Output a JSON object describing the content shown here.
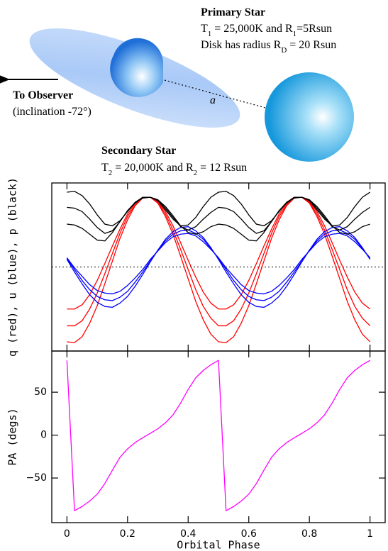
{
  "diagram": {
    "primary": {
      "title": "Primary Star",
      "lines": [
        [
          "T",
          "1",
          " = 25,000K and R",
          "1",
          "=5Rsun"
        ],
        [
          "Disk has radius R",
          "D",
          " = 20 Rsun"
        ]
      ]
    },
    "observer": {
      "label": "To Observer",
      "note": "(inclination -72°)"
    },
    "separation": "a",
    "secondary": {
      "title": "Secondary Star",
      "lines": [
        [
          "T",
          "2",
          " = 20,000K and R",
          "2",
          " = 12 Rsun"
        ]
      ]
    }
  },
  "chart_data": [
    {
      "type": "line",
      "ylabel": "q (red), u (blue), p (black)",
      "xlim": [
        -0.05,
        1.05
      ],
      "ylim": [
        -1,
        1
      ],
      "xticks": [
        0,
        0.2,
        0.4,
        0.6,
        0.8,
        1
      ],
      "tick_labels": false,
      "reference_line": 0,
      "x": [
        0,
        0.025,
        0.05,
        0.075,
        0.1,
        0.125,
        0.15,
        0.175,
        0.2,
        0.225,
        0.25,
        0.275,
        0.3,
        0.325,
        0.35,
        0.375,
        0.4,
        0.425,
        0.45,
        0.475,
        0.5,
        0.525,
        0.55,
        0.575,
        0.6,
        0.625,
        0.65,
        0.675,
        0.7,
        0.725,
        0.75,
        0.775,
        0.8,
        0.825,
        0.85,
        0.875,
        0.9,
        0.925,
        0.95,
        0.975,
        1
      ],
      "series": [
        {
          "color": "#ff0000",
          "values": [
            -0.89,
            -0.9,
            -0.83,
            -0.67,
            -0.46,
            -0.2,
            0.07,
            0.34,
            0.56,
            0.73,
            0.82,
            0.83,
            0.76,
            0.6,
            0.39,
            0.13,
            -0.14,
            -0.41,
            -0.63,
            -0.8,
            -0.89,
            -0.9,
            -0.83,
            -0.67,
            -0.46,
            -0.2,
            0.07,
            0.34,
            0.56,
            0.73,
            0.82,
            0.83,
            0.76,
            0.6,
            0.39,
            0.13,
            -0.14,
            -0.41,
            -0.63,
            -0.8,
            -0.89
          ]
        },
        {
          "color": "#ff0000",
          "values": [
            -0.7,
            -0.7,
            -0.64,
            -0.5,
            -0.31,
            -0.08,
            0.16,
            0.4,
            0.6,
            0.74,
            0.83,
            0.83,
            0.77,
            0.63,
            0.44,
            0.21,
            -0.03,
            -0.27,
            -0.47,
            -0.61,
            -0.7,
            -0.7,
            -0.64,
            -0.5,
            -0.31,
            -0.08,
            0.16,
            0.4,
            0.6,
            0.74,
            0.83,
            0.83,
            0.77,
            0.63,
            0.44,
            0.21,
            -0.03,
            -0.27,
            -0.47,
            -0.61,
            -0.7
          ]
        },
        {
          "color": "#ff0000",
          "values": [
            -0.5,
            -0.5,
            -0.45,
            -0.33,
            -0.16,
            0.04,
            0.25,
            0.45,
            0.63,
            0.76,
            0.83,
            0.83,
            0.78,
            0.66,
            0.49,
            0.29,
            0.08,
            -0.12,
            -0.3,
            -0.43,
            -0.5,
            -0.5,
            -0.45,
            -0.33,
            -0.16,
            0.04,
            0.25,
            0.45,
            0.63,
            0.76,
            0.83,
            0.83,
            0.78,
            0.66,
            0.49,
            0.29,
            0.08,
            -0.12,
            -0.3,
            -0.43,
            -0.5
          ]
        },
        {
          "color": "#0000ff",
          "values": [
            0.09,
            -0.06,
            -0.2,
            -0.33,
            -0.42,
            -0.47,
            -0.48,
            -0.43,
            -0.35,
            -0.23,
            -0.09,
            0.06,
            0.2,
            0.33,
            0.42,
            0.47,
            0.48,
            0.43,
            0.35,
            0.23,
            0.09,
            -0.06,
            -0.2,
            -0.33,
            -0.42,
            -0.47,
            -0.48,
            -0.43,
            -0.35,
            -0.23,
            -0.09,
            0.06,
            0.2,
            0.33,
            0.42,
            0.47,
            0.48,
            0.43,
            0.35,
            0.23,
            0.09
          ]
        },
        {
          "color": "#0000ff",
          "values": [
            0.1,
            -0.03,
            -0.16,
            -0.27,
            -0.35,
            -0.39,
            -0.4,
            -0.36,
            -0.29,
            -0.18,
            -0.06,
            0.07,
            0.2,
            0.31,
            0.39,
            0.43,
            0.44,
            0.4,
            0.33,
            0.22,
            0.1,
            -0.03,
            -0.16,
            -0.27,
            -0.35,
            -0.39,
            -0.4,
            -0.36,
            -0.29,
            -0.18,
            -0.06,
            0.07,
            0.2,
            0.31,
            0.39,
            0.43,
            0.44,
            0.4,
            0.33,
            0.22,
            0.1
          ]
        },
        {
          "color": "#0000ff",
          "values": [
            0.11,
            -0.01,
            -0.11,
            -0.21,
            -0.28,
            -0.31,
            -0.32,
            -0.29,
            -0.22,
            -0.13,
            -0.03,
            0.09,
            0.19,
            0.29,
            0.36,
            0.39,
            0.4,
            0.37,
            0.3,
            0.21,
            0.11,
            -0.01,
            -0.11,
            -0.21,
            -0.28,
            -0.31,
            -0.32,
            -0.29,
            -0.22,
            -0.13,
            -0.03,
            0.09,
            0.19,
            0.29,
            0.36,
            0.39,
            0.4,
            0.37,
            0.3,
            0.21,
            0.11
          ]
        },
        {
          "color": "#000000",
          "values": [
            0.89,
            0.9,
            0.85,
            0.75,
            0.62,
            0.51,
            0.49,
            0.55,
            0.66,
            0.77,
            0.82,
            0.83,
            0.79,
            0.68,
            0.57,
            0.49,
            0.5,
            0.59,
            0.72,
            0.83,
            0.89,
            0.9,
            0.85,
            0.75,
            0.62,
            0.51,
            0.49,
            0.55,
            0.66,
            0.77,
            0.82,
            0.83,
            0.79,
            0.68,
            0.57,
            0.49,
            0.5,
            0.59,
            0.72,
            0.83,
            0.89
          ]
        },
        {
          "color": "#000000",
          "values": [
            0.71,
            0.7,
            0.66,
            0.57,
            0.47,
            0.4,
            0.43,
            0.54,
            0.67,
            0.76,
            0.83,
            0.83,
            0.8,
            0.7,
            0.59,
            0.48,
            0.44,
            0.48,
            0.57,
            0.65,
            0.71,
            0.7,
            0.66,
            0.57,
            0.47,
            0.4,
            0.43,
            0.54,
            0.67,
            0.76,
            0.83,
            0.83,
            0.8,
            0.7,
            0.59,
            0.48,
            0.44,
            0.48,
            0.57,
            0.65,
            0.71
          ]
        },
        {
          "color": "#000000",
          "values": [
            0.51,
            0.5,
            0.46,
            0.39,
            0.32,
            0.31,
            0.41,
            0.54,
            0.67,
            0.77,
            0.83,
            0.83,
            0.8,
            0.72,
            0.61,
            0.49,
            0.41,
            0.39,
            0.42,
            0.48,
            0.51,
            0.5,
            0.46,
            0.39,
            0.32,
            0.31,
            0.41,
            0.54,
            0.67,
            0.77,
            0.83,
            0.83,
            0.8,
            0.72,
            0.61,
            0.49,
            0.41,
            0.39,
            0.42,
            0.48,
            0.51
          ]
        }
      ]
    },
    {
      "type": "line",
      "ylabel": "PA (degs)",
      "xlabel": "Orbital Phase",
      "xlim": [
        -0.05,
        1.05
      ],
      "ylim": [
        -102,
        98
      ],
      "xticks": [
        0,
        0.2,
        0.4,
        0.6,
        0.8,
        1
      ],
      "yticks": [
        {
          "value": -50,
          "label": "−50"
        },
        0,
        50
      ],
      "x": [
        0,
        0.025,
        0.05,
        0.075,
        0.1,
        0.125,
        0.15,
        0.175,
        0.2,
        0.225,
        0.25,
        0.275,
        0.3,
        0.325,
        0.35,
        0.375,
        0.4,
        0.425,
        0.45,
        0.475,
        0.5,
        0.525,
        0.55,
        0.575,
        0.6,
        0.625,
        0.65,
        0.675,
        0.7,
        0.725,
        0.75,
        0.775,
        0.8,
        0.825,
        0.85,
        0.875,
        0.9,
        0.925,
        0.95,
        0.975,
        1
      ],
      "series": [
        {
          "color": "#ff00ff",
          "values": [
            87.1,
            -88.1,
            -83.2,
            -76.9,
            -68.8,
            -56.5,
            -40.9,
            -25.9,
            -16.0,
            -8.7,
            -3.1,
            2.1,
            7.4,
            14.4,
            23.6,
            37.3,
            53.1,
            66.8,
            75.5,
            82.0,
            87.1,
            -88.1,
            -83.2,
            -76.9,
            -68.8,
            -56.5,
            -40.9,
            -25.9,
            -16.0,
            -8.7,
            -3.1,
            2.1,
            7.4,
            14.4,
            23.6,
            37.3,
            53.1,
            66.8,
            75.5,
            82.0,
            87.1
          ]
        }
      ]
    }
  ]
}
